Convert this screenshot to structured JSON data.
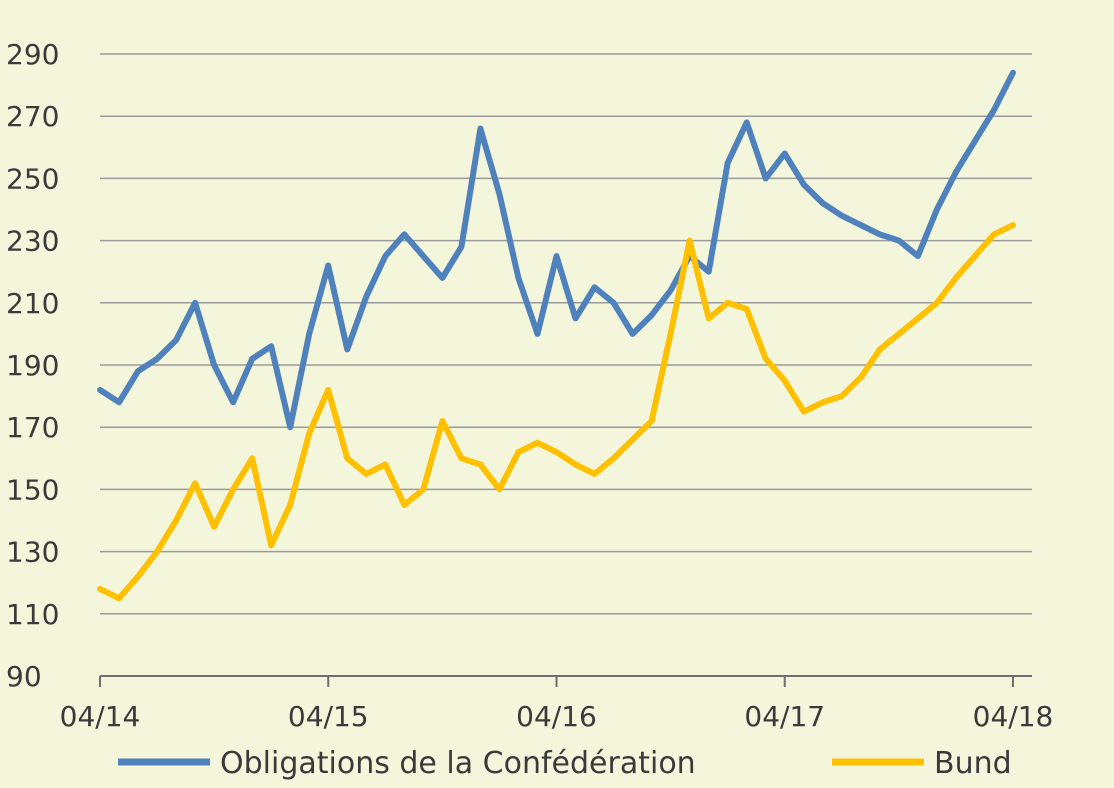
{
  "chart_data": {
    "type": "line",
    "title": "",
    "xlabel": "",
    "ylabel": "",
    "ylim": [
      90,
      290
    ],
    "y_ticks": [
      90,
      110,
      130,
      150,
      170,
      190,
      210,
      230,
      250,
      270,
      290
    ],
    "x_ticks": [
      "04/14",
      "04/15",
      "04/16",
      "04/17",
      "04/18"
    ],
    "xlim": [
      "2014-04",
      "2018-05"
    ],
    "grid": true,
    "legend": "bottom",
    "series": [
      {
        "name": "Obligations de la Confédération",
        "color": "#4f81bd",
        "x": [
          "2014-04",
          "2014-05",
          "2014-06",
          "2014-07",
          "2014-08",
          "2014-09",
          "2014-10",
          "2014-11",
          "2014-12",
          "2015-01",
          "2015-02",
          "2015-03",
          "2015-04",
          "2015-05",
          "2015-06",
          "2015-07",
          "2015-08",
          "2015-09",
          "2015-10",
          "2015-11",
          "2015-12",
          "2016-01",
          "2016-02",
          "2016-03",
          "2016-04",
          "2016-05",
          "2016-06",
          "2016-07",
          "2016-08",
          "2016-09",
          "2016-10",
          "2016-11",
          "2016-12",
          "2017-01",
          "2017-02",
          "2017-03",
          "2017-04",
          "2017-05",
          "2017-06",
          "2017-07",
          "2017-08",
          "2017-09",
          "2017-10",
          "2017-11",
          "2017-12",
          "2018-01",
          "2018-02",
          "2018-03",
          "2018-04"
        ],
        "values": [
          182,
          178,
          188,
          192,
          198,
          210,
          190,
          178,
          192,
          196,
          170,
          200,
          222,
          195,
          212,
          225,
          232,
          225,
          218,
          228,
          266,
          245,
          218,
          200,
          225,
          205,
          215,
          210,
          200,
          206,
          214,
          225,
          220,
          255,
          268,
          250,
          258,
          248,
          242,
          238,
          235,
          232,
          230,
          225,
          240,
          252,
          262,
          272,
          284
        ]
      },
      {
        "name": "Bund",
        "color": "#ffc000",
        "x": [
          "2014-04",
          "2014-05",
          "2014-06",
          "2014-07",
          "2014-08",
          "2014-09",
          "2014-10",
          "2014-11",
          "2014-12",
          "2015-01",
          "2015-02",
          "2015-03",
          "2015-04",
          "2015-05",
          "2015-06",
          "2015-07",
          "2015-08",
          "2015-09",
          "2015-10",
          "2015-11",
          "2015-12",
          "2016-01",
          "2016-02",
          "2016-03",
          "2016-04",
          "2016-05",
          "2016-06",
          "2016-07",
          "2016-08",
          "2016-09",
          "2016-10",
          "2016-11",
          "2016-12",
          "2017-01",
          "2017-02",
          "2017-03",
          "2017-04",
          "2017-05",
          "2017-06",
          "2017-07",
          "2017-08",
          "2017-09",
          "2017-10",
          "2017-11",
          "2017-12",
          "2018-01",
          "2018-02",
          "2018-03",
          "2018-04"
        ],
        "values": [
          118,
          115,
          122,
          130,
          140,
          152,
          138,
          150,
          160,
          132,
          145,
          168,
          182,
          160,
          155,
          158,
          145,
          150,
          172,
          160,
          158,
          150,
          162,
          165,
          162,
          158,
          155,
          160,
          166,
          172,
          200,
          230,
          205,
          210,
          208,
          192,
          185,
          175,
          178,
          180,
          186,
          195,
          200,
          205,
          210,
          218,
          225,
          232,
          235
        ]
      }
    ]
  }
}
